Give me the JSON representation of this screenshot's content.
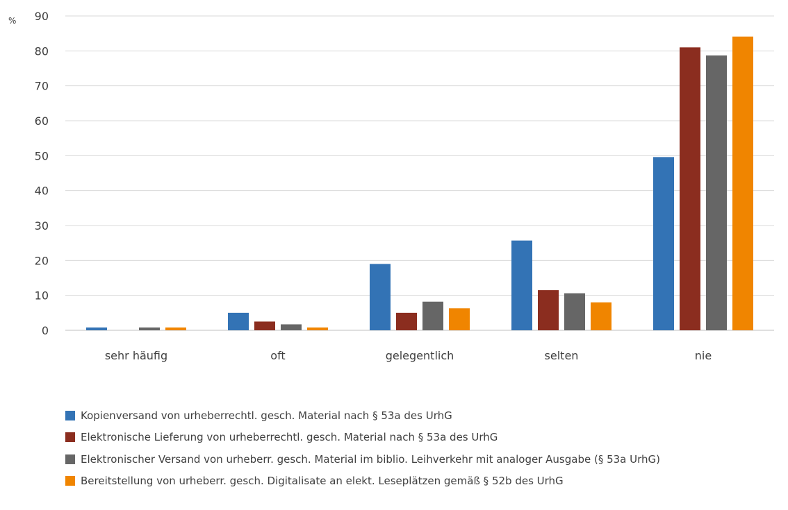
{
  "chart_data": {
    "type": "bar",
    "unit_label": "%",
    "categories": [
      "sehr häufig",
      "oft",
      "gelegentlich",
      "selten",
      "nie"
    ],
    "ylim": [
      0,
      90
    ],
    "yticks": [
      0,
      10,
      20,
      30,
      40,
      50,
      60,
      70,
      80,
      90
    ],
    "grid": true,
    "legend_position": "bottom",
    "series": [
      {
        "name": "Kopienversand von urheberrechtl. gesch. Material nach § 53a des UrhG",
        "color": "#3373b5",
        "values": [
          0.8,
          5.0,
          19.0,
          25.7,
          49.6
        ]
      },
      {
        "name": "Elektronische Lieferung von urheberrechtl. gesch. Material nach § 53a des UrhG",
        "color": "#8b2d1f",
        "values": [
          0,
          2.5,
          5.0,
          11.5,
          81.0
        ]
      },
      {
        "name": "Elektronischer Versand von urheberr. gesch. Material im biblio. Leihverkehr mit analoger Ausgabe (§ 53a UrhG)",
        "color": "#666666",
        "values": [
          0.8,
          1.7,
          8.2,
          10.6,
          78.7
        ]
      },
      {
        "name": "Bereitstellung von urheberr. gesch. Digitalisate an elekt. Leseplätzen gemäß § 52b des UrhG",
        "color": "#f08500",
        "values": [
          0.8,
          0.8,
          6.3,
          8.0,
          84.1
        ]
      }
    ]
  }
}
